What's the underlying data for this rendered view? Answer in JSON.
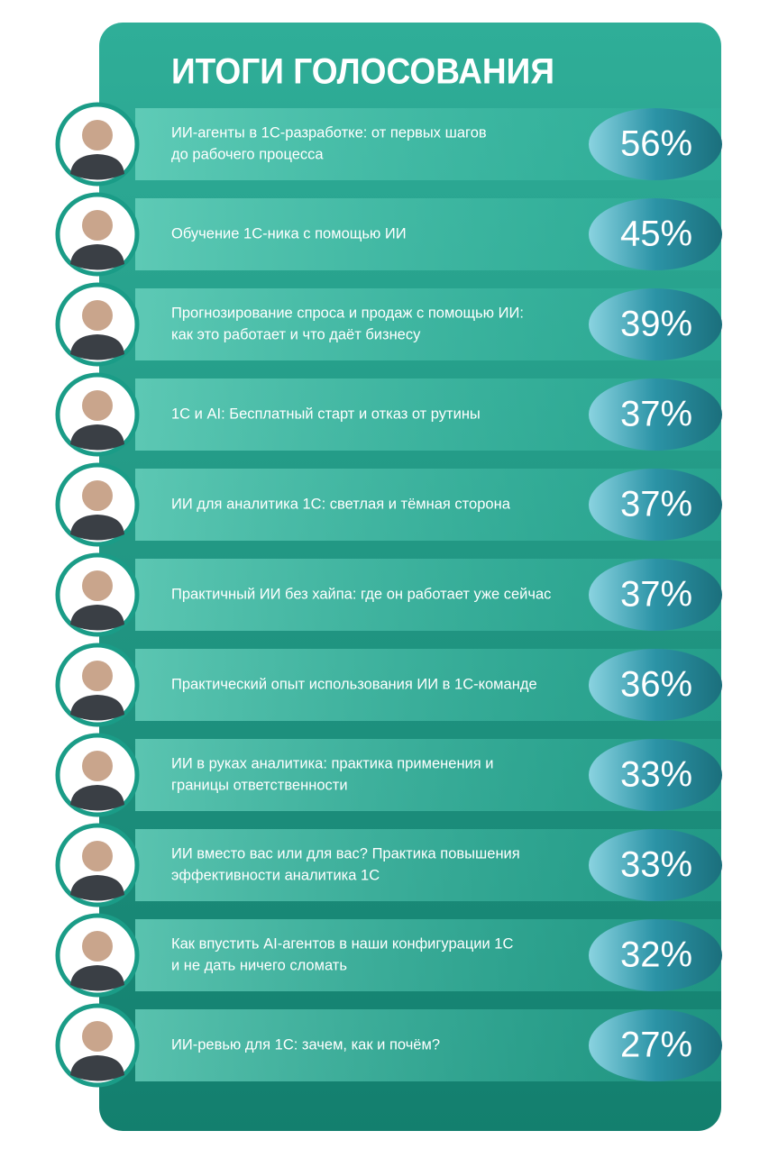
{
  "header": {
    "title": "ИТОГИ ГОЛОСОВАНИЯ"
  },
  "items": [
    {
      "lines": [
        "ИИ-агенты в 1С-разработке: от первых шагов",
        "до рабочего процесса"
      ],
      "percent": "56%"
    },
    {
      "lines": [
        "Обучение 1С-ника с помощью ИИ"
      ],
      "percent": "45%"
    },
    {
      "lines": [
        "Прогнозирование спроса и продаж с помощью ИИ:",
        "как это работает и что даёт бизнесу"
      ],
      "percent": "39%"
    },
    {
      "lines": [
        "1С и AI: Бесплатный старт и отказ от рутины"
      ],
      "percent": "37%"
    },
    {
      "lines": [
        "ИИ для аналитика 1С: светлая и тёмная сторона"
      ],
      "percent": "37%"
    },
    {
      "lines": [
        "Практичный ИИ без хайпа: где он работает уже сейчас"
      ],
      "percent": "37%"
    },
    {
      "lines": [
        "Практический опыт использования ИИ в 1С-команде"
      ],
      "percent": "36%"
    },
    {
      "lines": [
        "ИИ в руках аналитика: практика применения и",
        "границы ответственности"
      ],
      "percent": "33%"
    },
    {
      "lines": [
        "ИИ вместо вас или для вас? Практика повышения",
        "эффективности аналитика 1С"
      ],
      "percent": "33%"
    },
    {
      "lines": [
        "Как впустить AI-агентов в наши конфигурации 1С",
        "и не дать ничего сломать"
      ],
      "percent": "32%"
    },
    {
      "lines": [
        "ИИ-ревью для 1С: зачем, как и почём?"
      ],
      "percent": "27%"
    }
  ]
}
